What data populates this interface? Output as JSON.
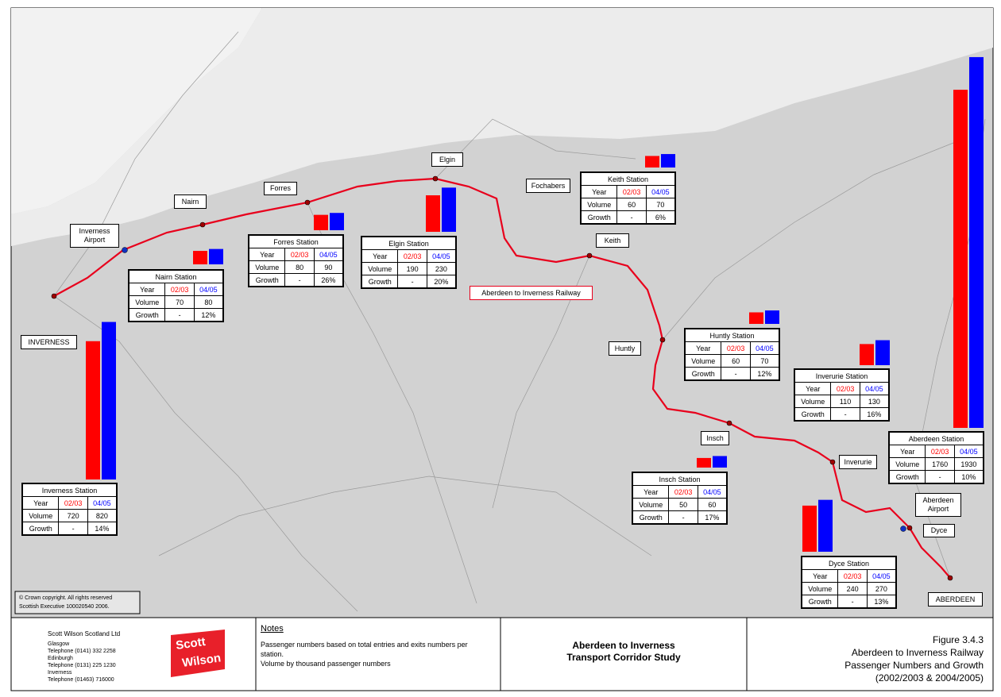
{
  "map": {
    "route_label": "Aberdeen to Inverness Railway",
    "copyright": [
      "© Crown copyright.  All rights reserved",
      "Scottish Executive 100020540 2006."
    ],
    "places": [
      "INVERNESS",
      "Inverness Airport",
      "Nairn",
      "Forres",
      "Elgin",
      "Fochabers",
      "Keith",
      "Huntly",
      "Insch",
      "Inverurie",
      "Aberdeen Airport",
      "Dyce",
      "ABERDEEN"
    ]
  },
  "table": {
    "year_label": "Year",
    "periods": [
      {
        "label": "02/03",
        "color": "#ff0000"
      },
      {
        "label": "04/05",
        "color": "#0000ff"
      }
    ],
    "rows": [
      "Volume",
      "Growth"
    ]
  },
  "stations": [
    {
      "name": "Inverness Station",
      "volume": [
        720,
        820
      ],
      "growth": [
        "-",
        "14%"
      ]
    },
    {
      "name": "Nairn Station",
      "volume": [
        70,
        80
      ],
      "growth": [
        "-",
        "12%"
      ]
    },
    {
      "name": "Forres Station",
      "volume": [
        80,
        90
      ],
      "growth": [
        "-",
        "26%"
      ]
    },
    {
      "name": "Elgin Station",
      "volume": [
        190,
        230
      ],
      "growth": [
        "-",
        "20%"
      ]
    },
    {
      "name": "Keith Station",
      "volume": [
        60,
        70
      ],
      "growth": [
        "-",
        "6%"
      ]
    },
    {
      "name": "Huntly Station",
      "volume": [
        60,
        70
      ],
      "growth": [
        "-",
        "12%"
      ]
    },
    {
      "name": "Inverurie Station",
      "volume": [
        110,
        130
      ],
      "growth": [
        "-",
        "16%"
      ]
    },
    {
      "name": "Insch Station",
      "volume": [
        50,
        60
      ],
      "growth": [
        "-",
        "17%"
      ]
    },
    {
      "name": "Dyce Station",
      "volume": [
        240,
        270
      ],
      "growth": [
        "-",
        "13%"
      ]
    },
    {
      "name": "Aberdeen Station",
      "volume": [
        1760,
        1930
      ],
      "growth": [
        "-",
        "10%"
      ]
    }
  ],
  "footer": {
    "company": "Scott Wilson Scotland Ltd",
    "offices": [
      "Glasgow",
      "Telephone (0141) 332 2258",
      "Edinburgh",
      "Telephone (0131) 225 1230",
      "Inverness",
      "Telephone (01463) 716000"
    ],
    "logo": [
      "Scott",
      "Wilson"
    ],
    "notes_title": "Notes",
    "notes": [
      "Passenger numbers based on total entries and exits numbers per station.",
      "Volume by thousand passenger numbers"
    ],
    "study": [
      "Aberdeen to Inverness",
      "Transport Corridor Study"
    ],
    "figure": [
      "Figure 3.4.3",
      "Aberdeen to Inverness Railway",
      "Passenger Numbers and Growth",
      "(2002/2003 & 2004/2005)"
    ]
  }
}
